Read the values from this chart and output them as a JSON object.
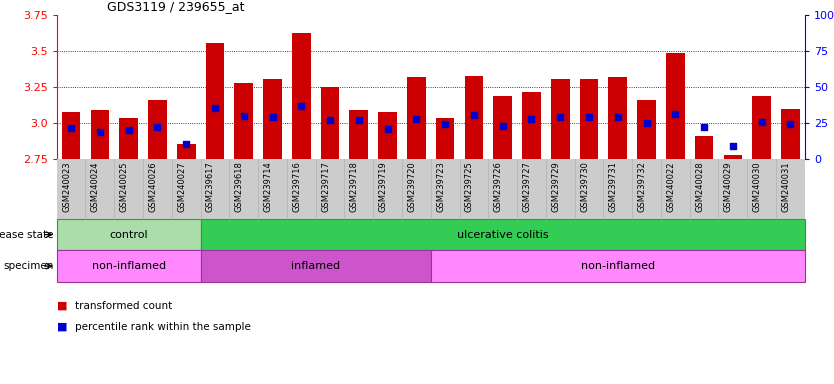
{
  "title": "GDS3119 / 239655_at",
  "samples": [
    "GSM240023",
    "GSM240024",
    "GSM240025",
    "GSM240026",
    "GSM240027",
    "GSM239617",
    "GSM239618",
    "GSM239714",
    "GSM239716",
    "GSM239717",
    "GSM239718",
    "GSM239719",
    "GSM239720",
    "GSM239723",
    "GSM239725",
    "GSM239726",
    "GSM239727",
    "GSM239729",
    "GSM239730",
    "GSM239731",
    "GSM239732",
    "GSM240022",
    "GSM240028",
    "GSM240029",
    "GSM240030",
    "GSM240031"
  ],
  "bar_values": [
    3.08,
    3.09,
    3.04,
    3.16,
    2.86,
    3.56,
    3.28,
    3.31,
    3.63,
    3.25,
    3.09,
    3.08,
    3.32,
    3.04,
    3.33,
    3.19,
    3.22,
    3.31,
    3.31,
    3.32,
    3.16,
    3.49,
    2.91,
    2.78,
    3.19,
    3.1
  ],
  "blue_dot_values": [
    2.965,
    2.938,
    2.952,
    2.978,
    2.857,
    3.11,
    3.048,
    3.042,
    3.12,
    3.02,
    3.022,
    2.963,
    3.03,
    2.993,
    3.06,
    2.983,
    3.028,
    3.042,
    3.042,
    3.042,
    3.003,
    3.062,
    2.972,
    2.843,
    3.012,
    2.993
  ],
  "ymin": 2.75,
  "ymax": 3.75,
  "y_ticks_left": [
    2.75,
    3.0,
    3.25,
    3.5,
    3.75
  ],
  "y_ticks_right": [
    0,
    25,
    50,
    75,
    100
  ],
  "bar_color": "#cc0000",
  "dot_color": "#0000cc",
  "xtick_bg_color": "#cccccc",
  "disease_state_groups": [
    {
      "label": "control",
      "start": 0,
      "end": 5,
      "color": "#aaddaa",
      "edge": "#339933"
    },
    {
      "label": "ulcerative colitis",
      "start": 5,
      "end": 26,
      "color": "#33cc55",
      "edge": "#339933"
    }
  ],
  "specimen_groups": [
    {
      "label": "non-inflamed",
      "start": 0,
      "end": 5,
      "color": "#ff88ff",
      "edge": "#993399"
    },
    {
      "label": "inflamed",
      "start": 5,
      "end": 13,
      "color": "#cc55cc",
      "edge": "#993399"
    },
    {
      "label": "non-inflamed",
      "start": 13,
      "end": 26,
      "color": "#ff88ff",
      "edge": "#993399"
    }
  ],
  "ds_label": "disease state",
  "sp_label": "specimen",
  "legend_items": [
    {
      "label": "transformed count",
      "color": "#cc0000"
    },
    {
      "label": "percentile rank within the sample",
      "color": "#0000cc"
    }
  ],
  "grid_lines": [
    3.0,
    3.25,
    3.5
  ]
}
